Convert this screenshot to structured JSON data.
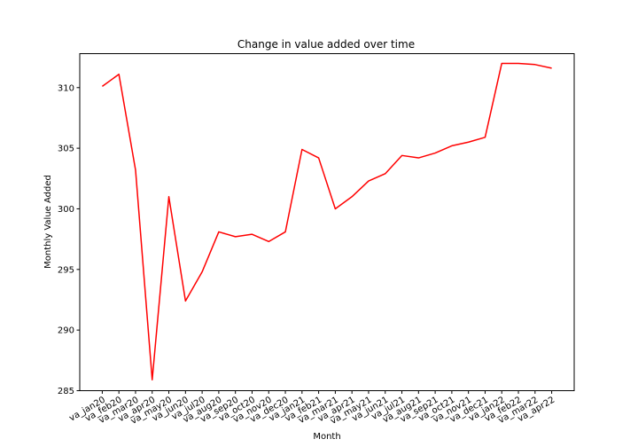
{
  "chart_data": {
    "type": "line",
    "title": "Change in value added over time",
    "xlabel": "Month",
    "ylabel": "Monthly Value Added",
    "categories": [
      "va_jan20",
      "va_feb20",
      "va_mar20",
      "va_apr20",
      "va_may20",
      "va_jun20",
      "va_jul20",
      "va_aug20",
      "va_sep20",
      "va_oct20",
      "va_nov20",
      "va_dec20",
      "va_jan21",
      "va_feb21",
      "va_mar21",
      "va_apr21",
      "va_may21",
      "va_jun21",
      "va_jul21",
      "va_aug21",
      "va_sep21",
      "va_oct21",
      "va_nov21",
      "va_dec21",
      "va_jan22",
      "va_feb22",
      "va_mar22",
      "va_apr22"
    ],
    "series": [
      {
        "values": [
          310.1,
          311.1,
          303.2,
          285.9,
          301.0,
          292.4,
          294.8,
          298.1,
          297.7,
          297.9,
          297.3,
          298.1,
          304.9,
          304.2,
          300.0,
          301.0,
          302.3,
          302.9,
          304.4,
          304.2,
          304.6,
          305.2,
          305.5,
          305.9,
          312.0,
          312.0,
          311.9,
          311.6
        ],
        "color": "#ff0000"
      }
    ],
    "ylim": [
      285.0,
      312.8
    ],
    "yticks": [
      285,
      290,
      295,
      300,
      305,
      310
    ],
    "grid": false,
    "legend": "none"
  }
}
